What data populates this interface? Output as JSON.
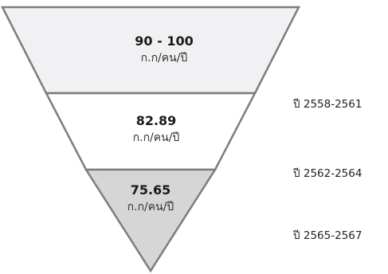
{
  "tiers": [
    {
      "value": "90 - 100",
      "unit": "ก.ก/คน/ปี",
      "period": "ปี 2558-2561",
      "fill": "#f1f1f3"
    },
    {
      "value": "82.89",
      "unit": "ก.ก/คน/ปี",
      "period": "ปี 2562-2564",
      "fill": "#ffffff"
    },
    {
      "value": "75.65",
      "unit": "ก.ก/คน/ปี",
      "period": "ปี 2565-2567",
      "fill": "#d6d6d6"
    }
  ],
  "colors": {
    "stroke": "#7d7d7d"
  }
}
